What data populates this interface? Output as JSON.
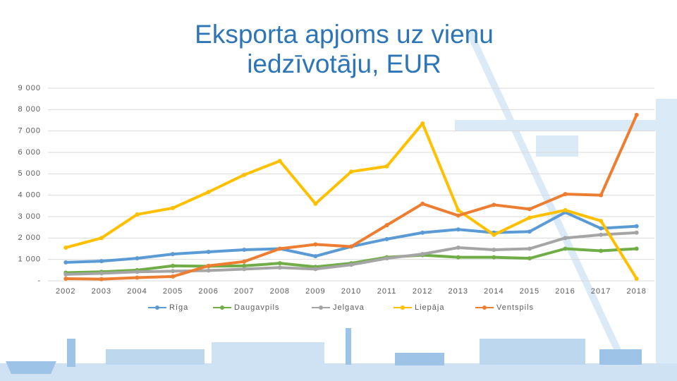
{
  "chart_data": {
    "type": "line",
    "title": "Eksporta apjoms uz vienu iedzīvotāju, EUR",
    "categories": [
      "2002",
      "2003",
      "2004",
      "2005",
      "2006",
      "2007",
      "2008",
      "2009",
      "2010",
      "2011",
      "2012",
      "2013",
      "2014",
      "2015",
      "2016",
      "2017",
      "2018"
    ],
    "series": [
      {
        "name": "Rīga",
        "color": "#5b9bd5",
        "values": [
          860,
          920,
          1050,
          1250,
          1350,
          1450,
          1500,
          1150,
          1600,
          1950,
          2250,
          2400,
          2250,
          2300,
          3200,
          2450,
          2550
        ]
      },
      {
        "name": "Daugavpils",
        "color": "#70ad47",
        "values": [
          380,
          420,
          500,
          700,
          680,
          700,
          820,
          650,
          820,
          1100,
          1200,
          1100,
          1100,
          1050,
          1500,
          1400,
          1500
        ]
      },
      {
        "name": "Jelgava",
        "color": "#a5a5a5",
        "values": [
          300,
          350,
          420,
          450,
          480,
          550,
          620,
          550,
          750,
          1050,
          1250,
          1550,
          1450,
          1500,
          2000,
          2150,
          2250
        ]
      },
      {
        "name": "Liepāja",
        "color": "#ffc000",
        "values": [
          1550,
          2000,
          3100,
          3400,
          4150,
          4950,
          5600,
          3600,
          5100,
          5350,
          7350,
          3300,
          2150,
          2950,
          3300,
          2800,
          100
        ]
      },
      {
        "name": "Ventspils",
        "color": "#ed7d31",
        "values": [
          100,
          80,
          150,
          200,
          700,
          900,
          1500,
          1700,
          1600,
          2600,
          3600,
          3050,
          3550,
          3350,
          4050,
          4000,
          7750
        ]
      }
    ],
    "ylim": [
      0,
      9000
    ],
    "yticks": [
      {
        "value": 0,
        "label": "-"
      },
      {
        "value": 1000,
        "label": "1 000"
      },
      {
        "value": 2000,
        "label": "2 000"
      },
      {
        "value": 3000,
        "label": "3 000"
      },
      {
        "value": 4000,
        "label": "4 000"
      },
      {
        "value": 5000,
        "label": "5 000"
      },
      {
        "value": 6000,
        "label": "6 000"
      },
      {
        "value": 7000,
        "label": "7 000"
      },
      {
        "value": 8000,
        "label": "8 000"
      },
      {
        "value": 9000,
        "label": "9 000"
      }
    ],
    "grid": true,
    "legend": "bottom"
  }
}
